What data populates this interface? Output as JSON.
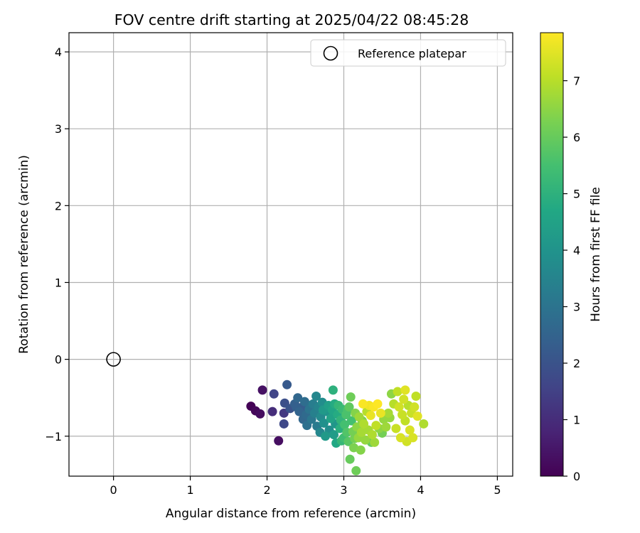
{
  "chart_data": {
    "type": "scatter",
    "title": "FOV centre drift starting at 2025/04/22 08:45:28",
    "xlabel": "Angular distance from reference (arcmin)",
    "ylabel": "Rotation from reference (arcmin)",
    "xlim": [
      -0.58,
      5.2
    ],
    "ylim": [
      -1.52,
      4.25
    ],
    "xticks": [
      0,
      1,
      2,
      3,
      4,
      5
    ],
    "xtick_labels": [
      "0",
      "1",
      "2",
      "3",
      "4",
      "5"
    ],
    "yticks": [
      -1,
      0,
      1,
      2,
      3,
      4
    ],
    "ytick_labels": [
      "−1",
      "0",
      "1",
      "2",
      "3",
      "4"
    ],
    "grid": true,
    "legend": {
      "position": "top-right",
      "entries": [
        "Reference platepar"
      ]
    },
    "reference": {
      "name": "Reference platepar",
      "x": 0,
      "y": 0,
      "marker": "open-circle"
    },
    "colorbar": {
      "label": "Hours from first FF file",
      "colormap": "viridis",
      "min": 0,
      "max": 7.85,
      "ticks": [
        0,
        1,
        2,
        3,
        4,
        5,
        6,
        7
      ],
      "tick_labels": [
        "0",
        "1",
        "2",
        "3",
        "4",
        "5",
        "6",
        "7"
      ]
    },
    "points": [
      {
        "x": 1.79,
        "y": -0.61,
        "h": 0.05
      },
      {
        "x": 1.85,
        "y": -0.67,
        "h": 0.15
      },
      {
        "x": 1.91,
        "y": -0.71,
        "h": 0.25
      },
      {
        "x": 1.94,
        "y": -0.4,
        "h": 0.35
      },
      {
        "x": 2.15,
        "y": -1.06,
        "h": 0.3
      },
      {
        "x": 2.07,
        "y": -0.68,
        "h": 1.0
      },
      {
        "x": 2.09,
        "y": -0.45,
        "h": 1.6
      },
      {
        "x": 2.22,
        "y": -0.7,
        "h": 1.3
      },
      {
        "x": 2.22,
        "y": -0.84,
        "h": 1.7
      },
      {
        "x": 2.23,
        "y": -0.57,
        "h": 1.9
      },
      {
        "x": 2.26,
        "y": -0.33,
        "h": 2.2
      },
      {
        "x": 2.3,
        "y": -0.64,
        "h": 2.0
      },
      {
        "x": 2.36,
        "y": -0.58,
        "h": 2.4
      },
      {
        "x": 2.4,
        "y": -0.5,
        "h": 2.6
      },
      {
        "x": 2.42,
        "y": -0.68,
        "h": 2.5
      },
      {
        "x": 2.46,
        "y": -0.62,
        "h": 2.3
      },
      {
        "x": 2.49,
        "y": -0.55,
        "h": 2.8
      },
      {
        "x": 2.51,
        "y": -0.72,
        "h": 2.7
      },
      {
        "x": 2.52,
        "y": -0.86,
        "h": 2.9
      },
      {
        "x": 2.55,
        "y": -0.65,
        "h": 3.0
      },
      {
        "x": 2.58,
        "y": -0.78,
        "h": 3.1
      },
      {
        "x": 2.6,
        "y": -0.58,
        "h": 3.3
      },
      {
        "x": 2.62,
        "y": -0.7,
        "h": 3.4
      },
      {
        "x": 2.64,
        "y": -0.48,
        "h": 3.6
      },
      {
        "x": 2.65,
        "y": -0.87,
        "h": 3.2
      },
      {
        "x": 2.67,
        "y": -0.62,
        "h": 3.5
      },
      {
        "x": 2.7,
        "y": -0.75,
        "h": 3.7
      },
      {
        "x": 2.72,
        "y": -0.56,
        "h": 3.8
      },
      {
        "x": 2.74,
        "y": -0.83,
        "h": 3.9
      },
      {
        "x": 2.76,
        "y": -1.0,
        "h": 4.2
      },
      {
        "x": 2.78,
        "y": -0.68,
        "h": 4.0
      },
      {
        "x": 2.8,
        "y": -0.6,
        "h": 4.4
      },
      {
        "x": 2.81,
        "y": -0.92,
        "h": 3.8
      },
      {
        "x": 2.83,
        "y": -0.77,
        "h": 4.5
      },
      {
        "x": 2.85,
        "y": -0.66,
        "h": 4.6
      },
      {
        "x": 2.86,
        "y": -0.4,
        "h": 5.0
      },
      {
        "x": 2.87,
        "y": -0.98,
        "h": 4.3
      },
      {
        "x": 2.89,
        "y": -0.84,
        "h": 4.1
      },
      {
        "x": 2.9,
        "y": -1.09,
        "h": 4.7
      },
      {
        "x": 2.92,
        "y": -0.72,
        "h": 4.8
      },
      {
        "x": 2.93,
        "y": -0.6,
        "h": 5.2
      },
      {
        "x": 2.95,
        "y": -0.9,
        "h": 4.9
      },
      {
        "x": 2.96,
        "y": -0.79,
        "h": 5.1
      },
      {
        "x": 2.98,
        "y": -0.65,
        "h": 5.3
      },
      {
        "x": 3.0,
        "y": -1.02,
        "h": 5.4
      },
      {
        "x": 3.01,
        "y": -0.85,
        "h": 5.5
      },
      {
        "x": 3.03,
        "y": -0.72,
        "h": 5.6
      },
      {
        "x": 3.04,
        "y": -0.95,
        "h": 5.7
      },
      {
        "x": 3.06,
        "y": -1.07,
        "h": 5.8
      },
      {
        "x": 3.07,
        "y": -0.62,
        "h": 5.9
      },
      {
        "x": 3.08,
        "y": -1.3,
        "h": 6.0
      },
      {
        "x": 3.09,
        "y": -0.49,
        "h": 6.1
      },
      {
        "x": 3.1,
        "y": -0.8,
        "h": 5.5
      },
      {
        "x": 3.12,
        "y": -0.94,
        "h": 6.2
      },
      {
        "x": 3.13,
        "y": -1.15,
        "h": 6.3
      },
      {
        "x": 3.15,
        "y": -0.7,
        "h": 6.4
      },
      {
        "x": 3.16,
        "y": -1.45,
        "h": 6.1
      },
      {
        "x": 3.17,
        "y": -0.88,
        "h": 6.5
      },
      {
        "x": 3.19,
        "y": -1.02,
        "h": 6.6
      },
      {
        "x": 3.2,
        "y": -0.75,
        "h": 6.7
      },
      {
        "x": 3.22,
        "y": -1.18,
        "h": 6.4
      },
      {
        "x": 3.23,
        "y": -0.95,
        "h": 6.8
      },
      {
        "x": 3.25,
        "y": -0.58,
        "h": 7.8
      },
      {
        "x": 3.26,
        "y": -0.84,
        "h": 6.9
      },
      {
        "x": 3.28,
        "y": -1.05,
        "h": 6.6
      },
      {
        "x": 3.3,
        "y": -0.68,
        "h": 7.0
      },
      {
        "x": 3.32,
        "y": -0.92,
        "h": 6.8
      },
      {
        "x": 3.33,
        "y": -0.6,
        "h": 7.7
      },
      {
        "x": 3.35,
        "y": -0.73,
        "h": 7.6
      },
      {
        "x": 3.37,
        "y": -0.98,
        "h": 6.9
      },
      {
        "x": 3.39,
        "y": -0.62,
        "h": 7.8
      },
      {
        "x": 3.4,
        "y": -1.08,
        "h": 6.7
      },
      {
        "x": 3.42,
        "y": -0.86,
        "h": 7.1
      },
      {
        "x": 3.44,
        "y": -0.58,
        "h": 7.85
      },
      {
        "x": 3.46,
        "y": -0.9,
        "h": 6.5
      },
      {
        "x": 3.48,
        "y": -0.7,
        "h": 7.6
      },
      {
        "x": 3.52,
        "y": -0.78,
        "h": 6.6
      },
      {
        "x": 3.55,
        "y": -0.88,
        "h": 6.7
      },
      {
        "x": 3.58,
        "y": -0.7,
        "h": 6.8
      },
      {
        "x": 3.62,
        "y": -0.45,
        "h": 6.5
      },
      {
        "x": 3.65,
        "y": -0.58,
        "h": 7.0
      },
      {
        "x": 3.68,
        "y": -0.9,
        "h": 7.2
      },
      {
        "x": 3.7,
        "y": -0.42,
        "h": 7.1
      },
      {
        "x": 3.72,
        "y": -0.62,
        "h": 7.3
      },
      {
        "x": 3.74,
        "y": -1.02,
        "h": 7.4
      },
      {
        "x": 3.76,
        "y": -0.72,
        "h": 7.2
      },
      {
        "x": 3.78,
        "y": -0.52,
        "h": 7.3
      },
      {
        "x": 3.8,
        "y": -0.4,
        "h": 7.5
      },
      {
        "x": 3.8,
        "y": -0.8,
        "h": 7.1
      },
      {
        "x": 3.82,
        "y": -1.07,
        "h": 7.3
      },
      {
        "x": 3.84,
        "y": -0.6,
        "h": 7.0
      },
      {
        "x": 3.86,
        "y": -0.92,
        "h": 7.4
      },
      {
        "x": 3.88,
        "y": -0.7,
        "h": 7.2
      },
      {
        "x": 3.9,
        "y": -1.02,
        "h": 7.4
      },
      {
        "x": 3.92,
        "y": -0.62,
        "h": 7.3
      },
      {
        "x": 3.94,
        "y": -0.48,
        "h": 7.1
      },
      {
        "x": 3.96,
        "y": -0.74,
        "h": 7.5
      },
      {
        "x": 4.04,
        "y": -0.84,
        "h": 6.9
      },
      {
        "x": 3.6,
        "y": -0.76,
        "h": 6.6
      },
      {
        "x": 3.5,
        "y": -0.96,
        "h": 6.2
      },
      {
        "x": 3.36,
        "y": -1.08,
        "h": 6.0
      },
      {
        "x": 3.24,
        "y": -0.8,
        "h": 6.3
      },
      {
        "x": 3.14,
        "y": -1.03,
        "h": 6.2
      },
      {
        "x": 3.05,
        "y": -0.66,
        "h": 5.6
      },
      {
        "x": 2.97,
        "y": -1.06,
        "h": 5.2
      },
      {
        "x": 2.88,
        "y": -0.58,
        "h": 4.8
      },
      {
        "x": 2.73,
        "y": -0.66,
        "h": 4.2
      },
      {
        "x": 2.69,
        "y": -0.95,
        "h": 3.6
      },
      {
        "x": 2.57,
        "y": -0.6,
        "h": 2.9
      },
      {
        "x": 2.47,
        "y": -0.78,
        "h": 2.6
      },
      {
        "x": 2.38,
        "y": -0.62,
        "h": 2.4
      }
    ]
  }
}
